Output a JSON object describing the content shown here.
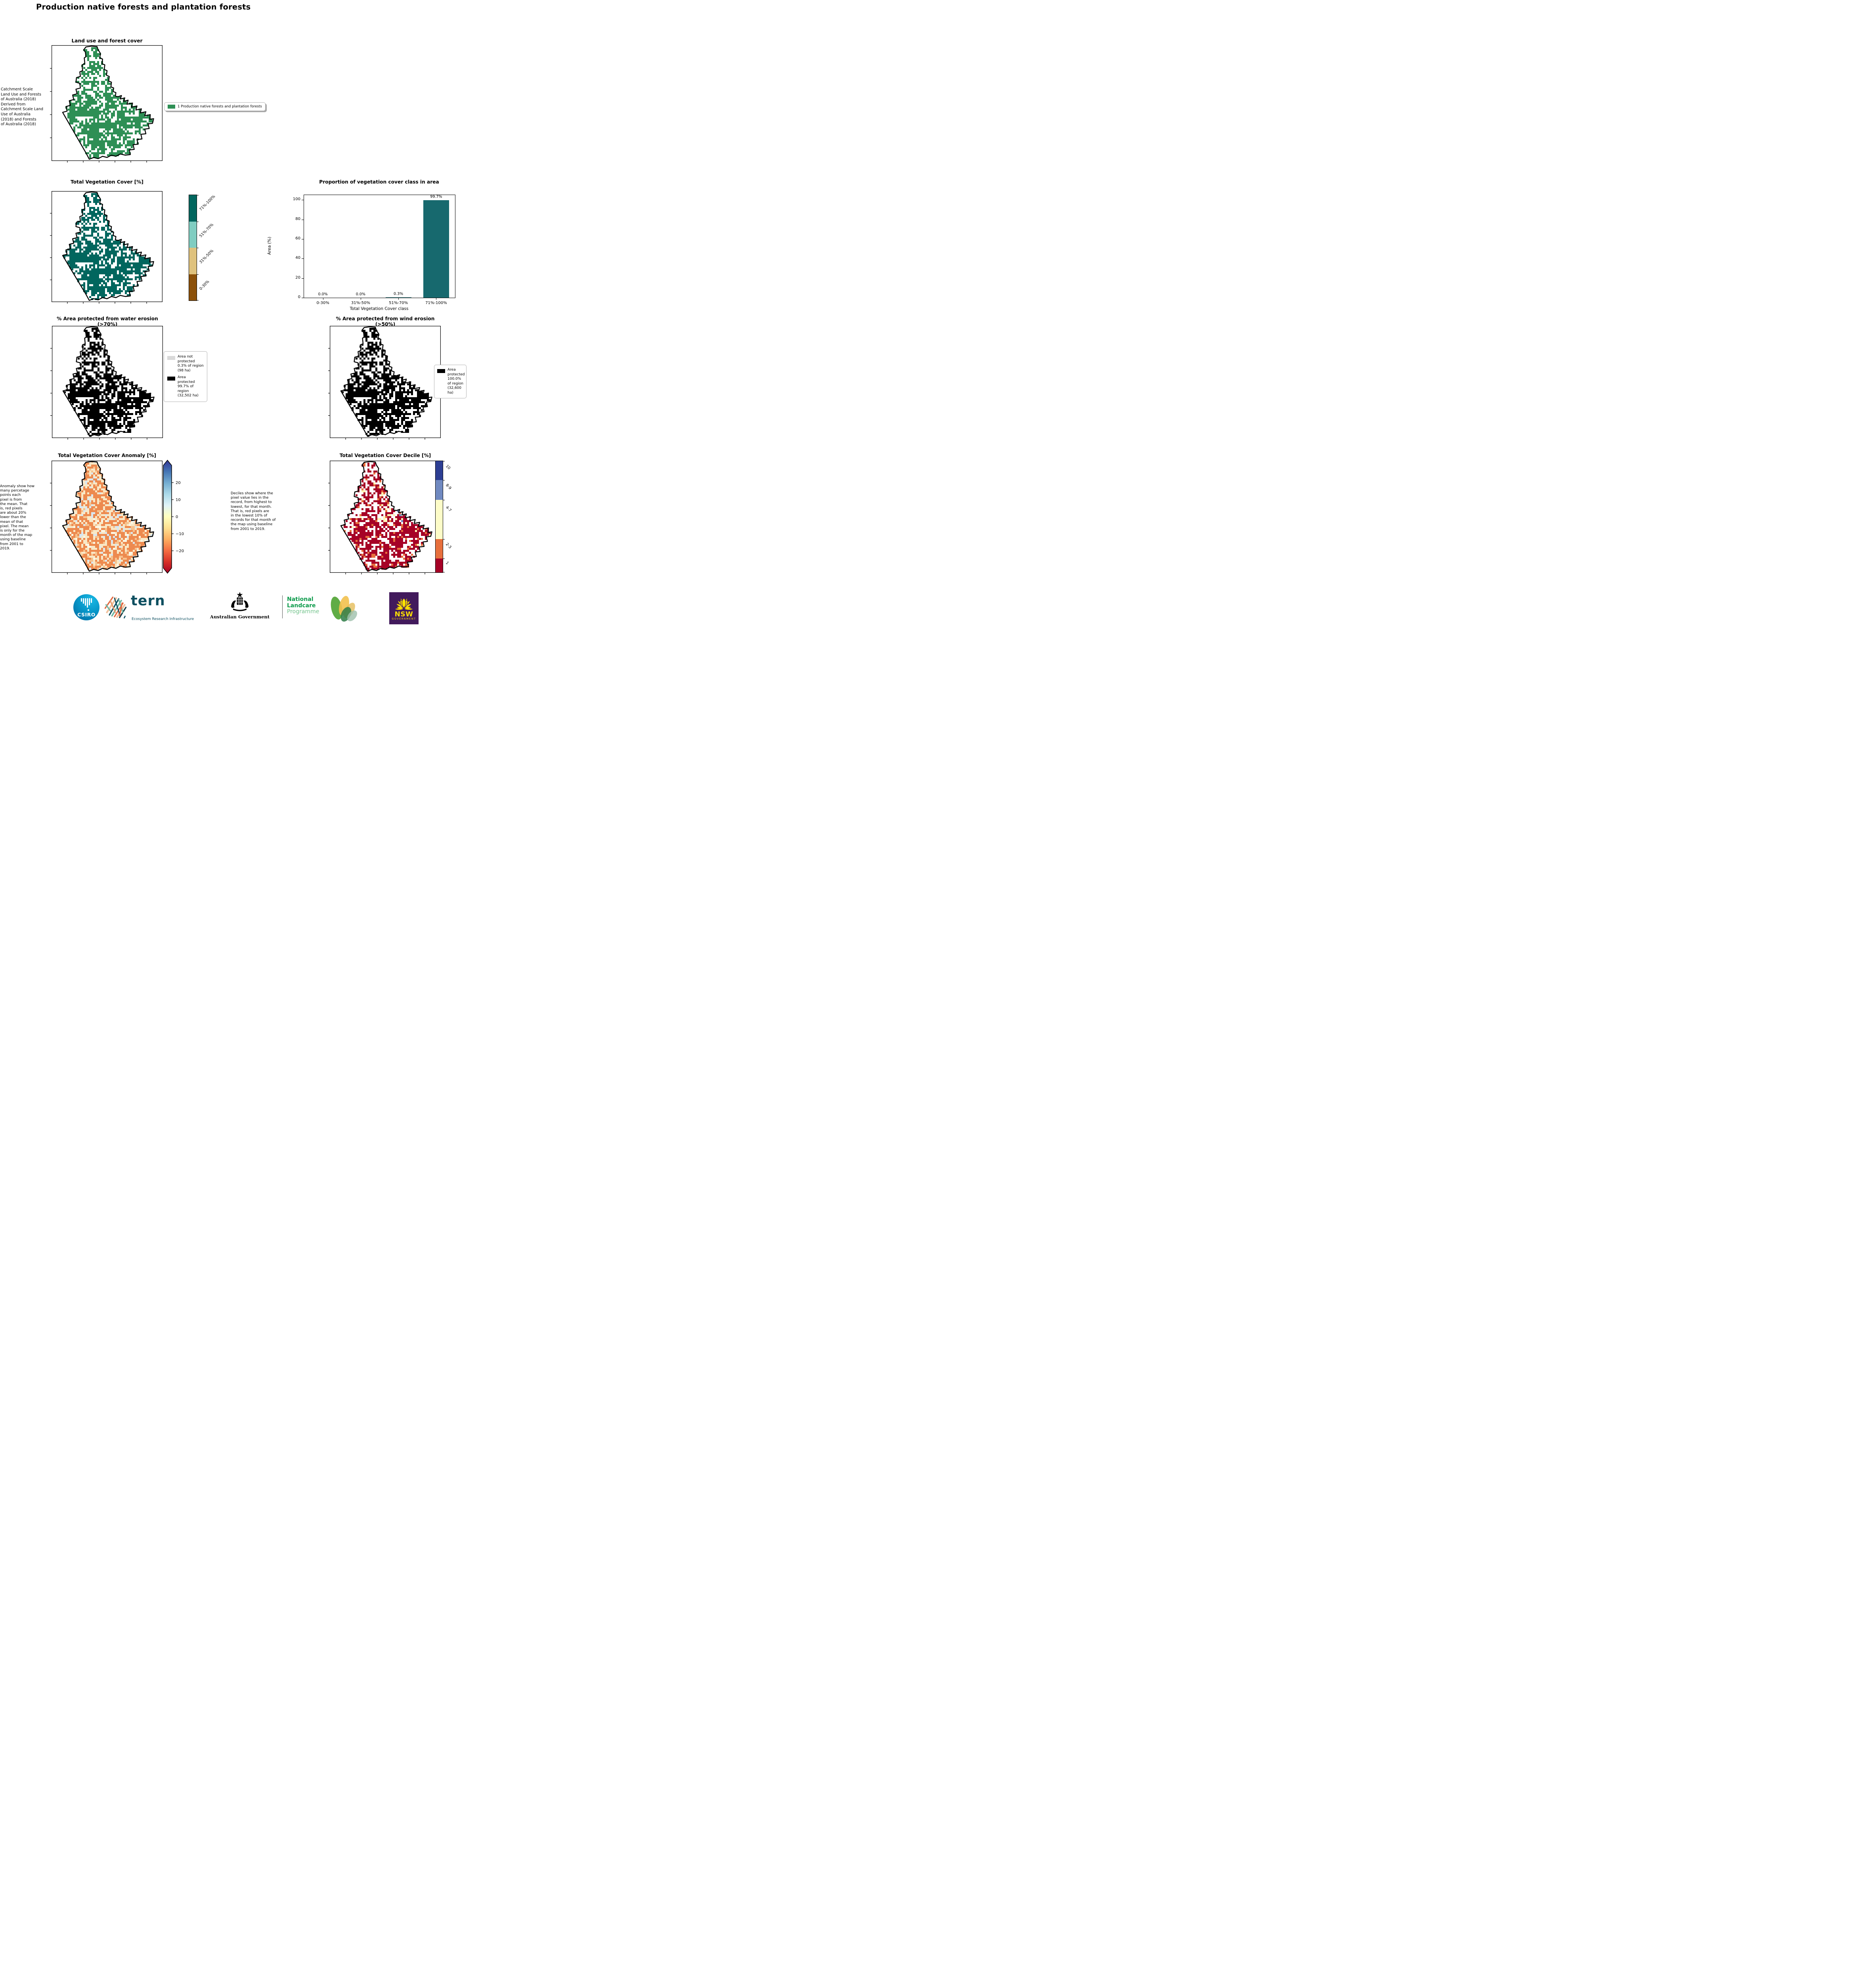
{
  "page": {
    "title": "Production native forests and plantation forests"
  },
  "panel_land_use": {
    "title": "Land use and forest cover",
    "side_note": " Catchment Scale\nLand Use and Forests\nof Australia (2018)\nDerived from\nCatchment Scale Land\nUse of Australia\n(2018) and Forests\nof Australia (2018)",
    "legend_label": "1 Production native forests and plantation forests",
    "legend_color": "#2e8f55"
  },
  "panel_tvc": {
    "title": "Total Vegetation Cover [%]",
    "colorbar": [
      {
        "label": "71%-100%",
        "color": "#01665e",
        "height": 25
      },
      {
        "label": "51%-70%",
        "color": "#80cdc1",
        "height": 25
      },
      {
        "label": "31%-50%",
        "color": "#dfc27d",
        "height": 25
      },
      {
        "label": "0-30%",
        "color": "#8c510a",
        "height": 25
      }
    ]
  },
  "chart_data": {
    "type": "bar",
    "title": "Proportion of vegetation cover class in area",
    "categories": [
      "0-30%",
      "31%-50%",
      "51%-70%",
      "71%-100%"
    ],
    "values": [
      0.0,
      0.0,
      0.3,
      99.7
    ],
    "bar_labels": [
      "0.0%",
      "0.0%",
      "0.3%",
      "99.7%"
    ],
    "xlabel": "Total Vegetation Cover class",
    "ylabel": "Area (%)",
    "ylim": [
      0,
      105
    ],
    "yticks": [
      0,
      20,
      40,
      60,
      80,
      100
    ],
    "bar_color": "#17696e",
    "grid": false,
    "legend_position": "none"
  },
  "panel_water": {
    "title": "% Area protected from water erosion (>70%)",
    "legend": [
      {
        "color": "#d9d9d9",
        "label": "Area not protected 0.3% of region (98 ha)"
      },
      {
        "color": "#000000",
        "label": "Area protected 99.7% of region (32,502 ha)"
      }
    ]
  },
  "panel_wind": {
    "title": "% Area protected from wind erosion (>50%)",
    "legend": [
      {
        "color": "#000000",
        "label": "Area protected 100.0% of region (32,600 ha)"
      }
    ]
  },
  "panel_anomaly": {
    "title": "Total Vegetation Cover Anomaly [%]",
    "side_note": "Anomaly show how\nmany percetage\npoints each\npixel is from\nthe mean. That\nis, red pixels\nare about 20%\nlower than the\nmean of that\npixel. The mean\nis only for the\nmonth of the map\nusing baseline\nfrom 2001 to\n2019.",
    "colorbar_ticks": [
      "20",
      "10",
      "0",
      "−10",
      "−20"
    ],
    "colorbar_gradient": [
      "#313695",
      "#4575b4",
      "#74add1",
      "#abd9e9",
      "#e0f3f8",
      "#ffffbf",
      "#fee090",
      "#fdae61",
      "#f46d43",
      "#d73027",
      "#a50026"
    ]
  },
  "panel_decile": {
    "title": "Total Vegetation Cover Decile [%]",
    "side_note": "Deciles show where the\npixel value lies in the\nrecord, from highest to\nlowest, for that month.\nThat is, red pixels are\nin the lowest 10% of\nrecords for that month of\nthe map using baseline\nfrom 2001 to 2019.",
    "colorbar": [
      {
        "label": "10",
        "color": "#2d3e93",
        "height": 17
      },
      {
        "label": "8-9",
        "color": "#7089c0",
        "height": 18
      },
      {
        "label": "4-7",
        "color": "#fdfcc8",
        "height": 35
      },
      {
        "label": "2-3",
        "color": "#e7703d",
        "height": 17.5
      },
      {
        "label": "1",
        "color": "#a60226",
        "height": 12.5
      }
    ]
  },
  "maps": {
    "land_use": {
      "style": "forest",
      "pixel_color": "#2e8f55",
      "seed": 11
    },
    "tvc": {
      "style": "forest",
      "pixel_color": "#01665e",
      "seed": 11
    },
    "water": {
      "style": "forest",
      "pixel_color": "#000000",
      "seed": 11
    },
    "wind": {
      "style": "forest",
      "pixel_color": "#000000",
      "seed": 11
    },
    "anomaly": {
      "style": "anomaly",
      "seed": 23,
      "palette": {
        "base": "#fbf7e6",
        "pale": "#f9e8c6",
        "mid": "#f6c28e",
        "strong": "#ed8a4f",
        "blue": "#d8e7f0",
        "red": "#cf5246"
      }
    },
    "decile": {
      "style": "decile",
      "seed": 31,
      "palette": [
        "#a60226",
        "#e7703d",
        "#fdf3b3",
        "#6f89c0",
        "#2d3e93"
      ],
      "weights": [
        0.3,
        0.17,
        0.16,
        0.17,
        0.2
      ]
    }
  },
  "footer": {
    "csiro_label": "CSIRO",
    "tern_label": "tern",
    "tern_sub": "Ecosystem Research Infrastructure",
    "aus_gov_label": "Australian Government",
    "landcare_line1": "National",
    "landcare_line2": "Landcare",
    "landcare_line3": "Programme",
    "nsw_label": "NSW",
    "nsw_sub": "GOVERNMENT"
  }
}
